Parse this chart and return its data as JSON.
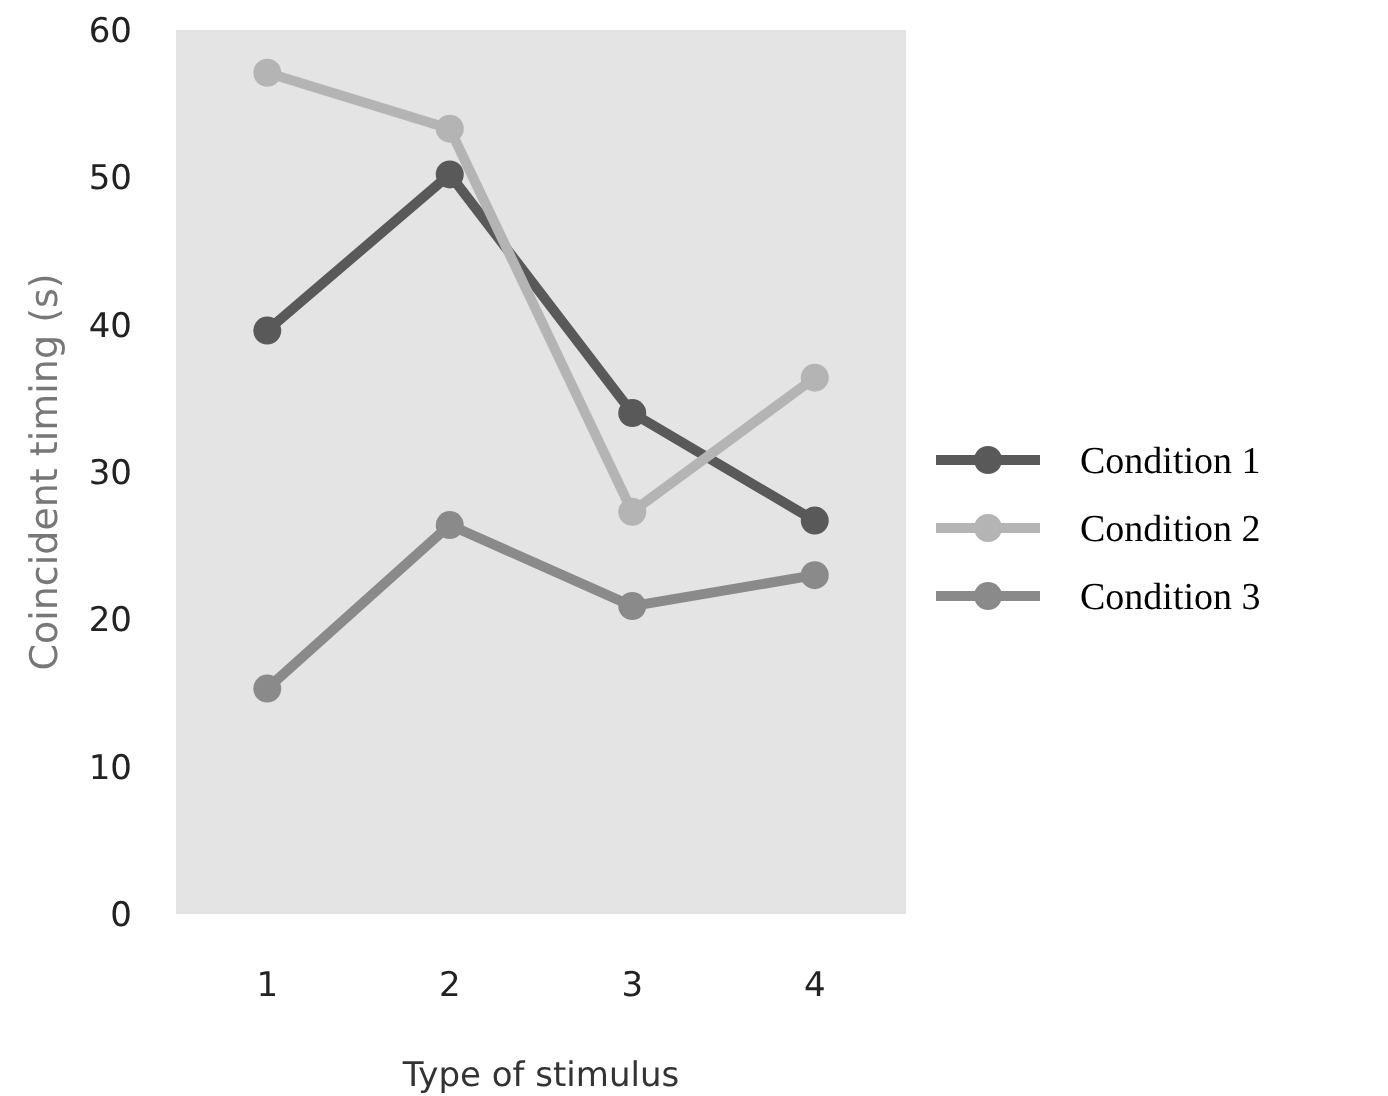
{
  "chart_data": {
    "type": "line",
    "xlabel": "Type of stimulus",
    "ylabel": "Coincident timing (s)",
    "categories": [
      "1",
      "2",
      "3",
      "4"
    ],
    "ylim": [
      0,
      60
    ],
    "yticks": [
      0,
      10,
      20,
      30,
      40,
      50,
      60
    ],
    "grid": false,
    "legend": "right",
    "marker": "circle",
    "line_style": "solid",
    "series": [
      {
        "name": "Condition 1",
        "color": "#595959",
        "values": [
          39.6,
          50.2,
          34.0,
          26.7
        ]
      },
      {
        "name": "Condition 2",
        "color": "#b4b4b4",
        "values": [
          57.1,
          53.3,
          27.3,
          36.4
        ]
      },
      {
        "name": "Condition 3",
        "color": "#8a8a8a",
        "values": [
          15.3,
          26.4,
          20.9,
          23.0
        ]
      }
    ]
  }
}
